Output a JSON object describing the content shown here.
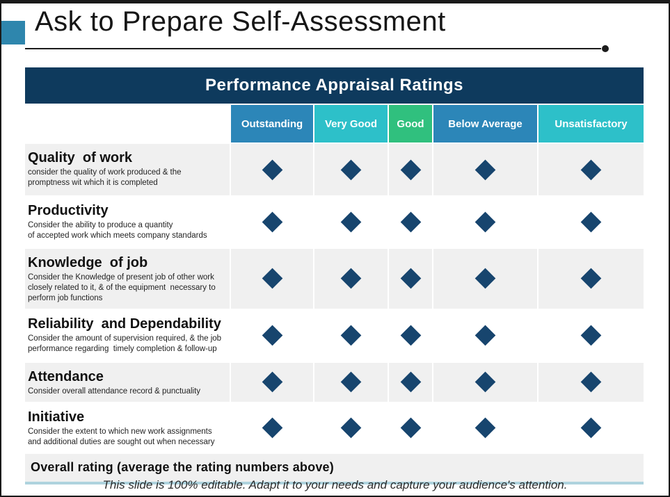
{
  "slide": {
    "title": "Ask to Prepare Self-Assessment",
    "footer": "This slide is 100% editable. Adapt it to your needs and capture your audience's attention."
  },
  "table": {
    "title": "Performance Appraisal Ratings",
    "columns": [
      {
        "label": "Outstanding",
        "color": "#2c86b8"
      },
      {
        "label": "Very Good",
        "color": "#2dc0c9"
      },
      {
        "label": "Good",
        "color": "#30c07e"
      },
      {
        "label": "Below Average",
        "color": "#2c86b8"
      },
      {
        "label": "Unsatisfactory",
        "color": "#2dc0c9"
      }
    ],
    "rows": [
      {
        "title": "Quality  of work",
        "description": "consider the quality of work produced & the promptness wit which it is completed",
        "ratings": [
          "diamond",
          "diamond",
          "diamond",
          "diamond",
          "diamond"
        ]
      },
      {
        "title": "Productivity",
        "description": "Consider the ability to produce a quantity\nof accepted work which meets company standards",
        "ratings": [
          "diamond",
          "diamond",
          "diamond",
          "diamond",
          "diamond"
        ]
      },
      {
        "title": "Knowledge  of job",
        "description": "Consider the Knowledge of present job of other work closely related to it, & of the equipment  necessary to perform job functions",
        "ratings": [
          "diamond",
          "diamond",
          "diamond",
          "diamond",
          "diamond"
        ]
      },
      {
        "title": "Reliability  and Dependability",
        "description": "Consider the amount of supervision required, & the job performance regarding  timely completion & follow-up",
        "ratings": [
          "diamond",
          "diamond",
          "diamond",
          "diamond",
          "diamond"
        ]
      },
      {
        "title": "Attendance",
        "description": "Consider overall attendance record & punctuality",
        "ratings": [
          "diamond",
          "diamond",
          "diamond",
          "diamond",
          "diamond"
        ]
      },
      {
        "title": "Initiative",
        "description": "Consider the extent to which new work assignments and additional duties are sought out when necessary",
        "ratings": [
          "diamond",
          "diamond",
          "diamond",
          "diamond",
          "diamond"
        ]
      }
    ],
    "overall_label": "Overall rating (average the rating numbers above)"
  },
  "colors": {
    "title_bar": "#0e3a5d",
    "marker": "#17456e",
    "accent_square": "#2e86ad",
    "alt_row": "#f0f0f0",
    "table_bottom_line": "#aed3de"
  }
}
